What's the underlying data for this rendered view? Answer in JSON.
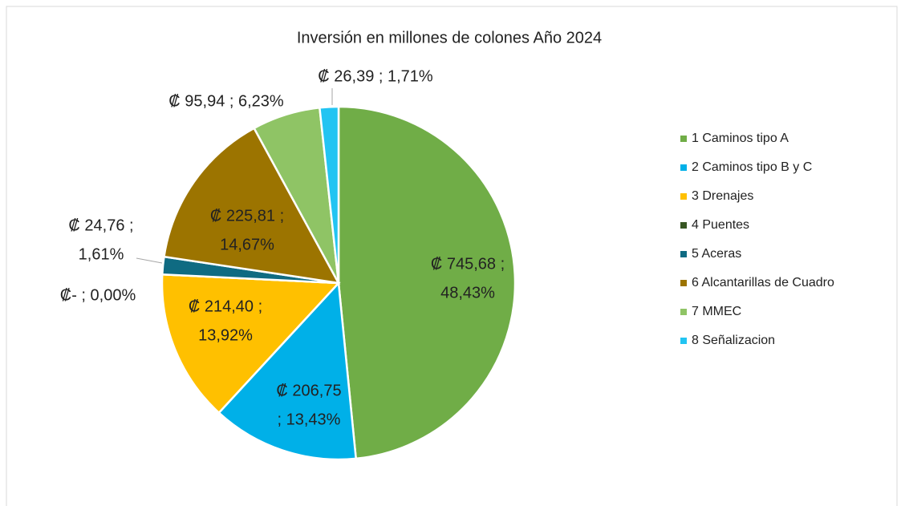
{
  "chart_data": {
    "type": "pie",
    "title": "Inversión en millones de colones Año 2024",
    "categories": [
      "1 Caminos tipo A",
      "2 Caminos tipo B y C",
      "3 Drenajes",
      "4 Puentes",
      "5 Aceras",
      "6 Alcantarillas de Cuadro",
      "7 MMEC",
      "8 Señalizacion"
    ],
    "values": [
      745.68,
      206.75,
      214.4,
      0,
      24.76,
      225.81,
      95.94,
      26.39
    ],
    "value_labels": [
      [
        "₡ 745,68 ;",
        "48,43%"
      ],
      [
        "₡ 206,75",
        "; 13,43%"
      ],
      [
        "₡ 214,40 ;",
        "13,92%"
      ],
      [
        "₡-   ; 0,00%"
      ],
      [
        "₡ 24,76 ;",
        "1,61%"
      ],
      [
        "₡ 225,81 ;",
        "14,67%"
      ],
      [
        "₡ 95,94 ; 6,23%"
      ],
      [
        "₡ 26,39 ; 1,71%"
      ]
    ],
    "colors": [
      "#70ad47",
      "#00b0e8",
      "#ffc000",
      "#375623",
      "#0f6b82",
      "#9c7400",
      "#8fc465",
      "#22c4f2"
    ],
    "legend": "right"
  }
}
